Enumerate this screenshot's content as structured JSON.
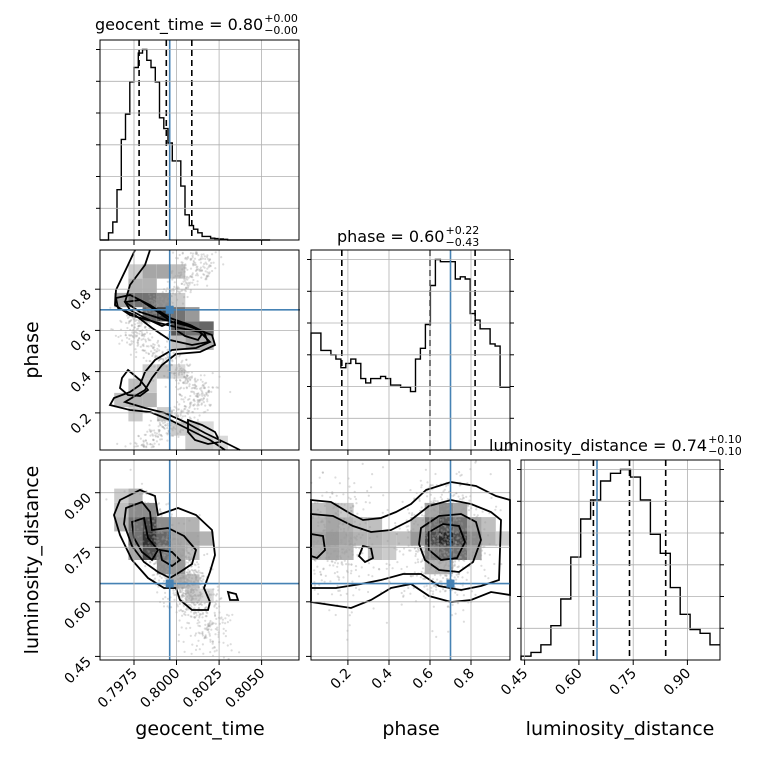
{
  "chart_data": {
    "type": "corner",
    "parameters": [
      "geocent_time",
      "phase",
      "luminosity_distance"
    ],
    "truths": {
      "geocent_time": 0.7996,
      "phase": 0.7,
      "luminosity_distance": 0.65
    },
    "axis_labels": {
      "geocent_time": "geocent_time",
      "phase": "phase",
      "luminosity_distance": "luminosity_distance"
    },
    "ranges": {
      "geocent_time": [
        0.7955,
        0.8072
      ],
      "phase": [
        0.02,
        0.99
      ],
      "luminosity_distance": [
        0.44,
        0.99
      ]
    },
    "ticks": {
      "geocent_time": [
        0.7975,
        0.8,
        0.8025,
        0.805
      ],
      "phase": [
        0.2,
        0.4,
        0.6,
        0.8
      ],
      "luminosity_distance": [
        0.45,
        0.6,
        0.75,
        0.9
      ]
    },
    "tick_labels": {
      "geocent_time": [
        "0.7975",
        "0.8000",
        "0.8025",
        "0.8050"
      ],
      "phase": [
        "0.2",
        "0.4",
        "0.6",
        "0.8"
      ],
      "luminosity_distance": [
        "0.45",
        "0.60",
        "0.75",
        "0.90"
      ]
    },
    "diag_titles": [
      {
        "param": "geocent_time",
        "name": "geocent_time",
        "median": "0.80",
        "plus": "+0.00",
        "minus": "−0.00"
      },
      {
        "param": "phase",
        "name": "phase",
        "median": "0.60",
        "plus": "+0.22",
        "minus": "−0.43"
      },
      {
        "param": "luminosity_distance",
        "name": "luminosity_distance",
        "median": "0.74",
        "plus": "+0.10",
        "minus": "−0.10"
      }
    ],
    "quantiles": {
      "geocent_time": [
        0.7978,
        0.7994,
        0.8009
      ],
      "phase": [
        0.17,
        0.6,
        0.82
      ],
      "luminosity_distance": [
        0.64,
        0.74,
        0.84
      ]
    },
    "histograms": {
      "geocent_time": {
        "bins": [
          0.7955,
          0.79575,
          0.796,
          0.79625,
          0.7965,
          0.79675,
          0.797,
          0.79725,
          0.7975,
          0.79775,
          0.798,
          0.79825,
          0.7985,
          0.79875,
          0.799,
          0.79925,
          0.7995,
          0.79975,
          0.8,
          0.80025,
          0.8005,
          0.80075,
          0.801,
          0.80125,
          0.8015,
          0.80175,
          0.802,
          0.80225,
          0.8025,
          0.80275,
          0.803,
          0.80325,
          0.8035,
          0.80375,
          0.804,
          0.80425,
          0.8045,
          0.80475,
          0.805,
          0.80525,
          0.8055
        ],
        "counts": [
          0,
          0,
          2,
          5,
          14,
          28,
          35,
          44,
          48,
          52,
          53,
          50,
          48,
          44,
          34,
          31,
          27,
          22,
          22,
          15,
          7,
          4,
          3,
          2,
          1,
          1,
          0.5,
          0.4,
          0.3,
          0.2,
          0,
          0,
          0,
          0,
          0,
          0,
          0,
          0,
          0,
          0
        ]
      },
      "phase": {
        "bins": [
          0.02,
          0.0443,
          0.0685,
          0.0928,
          0.117,
          0.1413,
          0.1655,
          0.1898,
          0.214,
          0.2383,
          0.2625,
          0.2868,
          0.311,
          0.3353,
          0.3595,
          0.3838,
          0.408,
          0.4323,
          0.4565,
          0.4808,
          0.505,
          0.5293,
          0.5535,
          0.5778,
          0.602,
          0.6263,
          0.6505,
          0.6748,
          0.699,
          0.7233,
          0.7475,
          0.7718,
          0.796,
          0.8203,
          0.8445,
          0.8688,
          0.893,
          0.9173,
          0.9415,
          0.9658,
          0.99
        ],
        "counts": [
          54,
          54,
          46,
          46,
          44,
          42,
          38,
          40,
          42,
          40,
          33,
          31,
          33,
          33,
          34,
          33,
          30,
          30,
          29,
          29,
          27,
          42,
          47,
          58,
          76,
          88,
          87,
          87,
          87,
          79,
          80,
          79,
          63,
          60,
          56,
          56,
          49,
          48,
          29,
          29
        ]
      },
      "luminosity_distance": {
        "bins": [
          0.44,
          0.4675,
          0.495,
          0.5225,
          0.55,
          0.5775,
          0.605,
          0.6325,
          0.66,
          0.6875,
          0.715,
          0.7425,
          0.77,
          0.7975,
          0.825,
          0.8525,
          0.88,
          0.9075,
          0.935,
          0.9625,
          0.99
        ],
        "counts": [
          1,
          2,
          4,
          9,
          16,
          27,
          37,
          42,
          47,
          49,
          50,
          48,
          42,
          33,
          28,
          19,
          12,
          8,
          7,
          4
        ]
      }
    },
    "contour_levels": 4,
    "grid": true
  }
}
